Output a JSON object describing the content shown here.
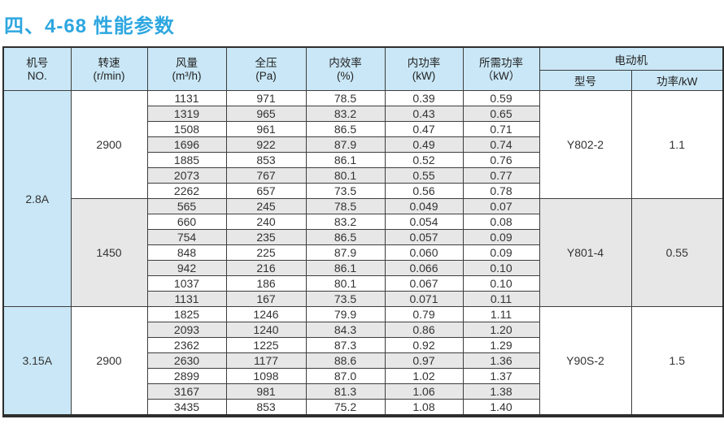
{
  "page_title": "四、4-68 性能参数",
  "colors": {
    "title_blue": "#2ea7e0",
    "header_bg": "#c9e7f6",
    "alt_row_bg": "#e7e7e7",
    "border": "#3d3d3d"
  },
  "table": {
    "headers": {
      "no": {
        "line1": "机号",
        "line2": "NO."
      },
      "speed": {
        "line1": "转速",
        "line2": "(r/min)"
      },
      "flow": {
        "line1": "风量",
        "line2": "(m³/h)"
      },
      "pressure": {
        "line1": "全压",
        "line2": "(Pa)"
      },
      "efficiency": {
        "line1": "内效率",
        "line2": "(%)"
      },
      "internal_power": {
        "line1": "内功率",
        "line2": "(kW)"
      },
      "required_power": {
        "line1": "所需功率",
        "line2": "（kW）"
      },
      "motor_group": "电动机",
      "motor_model": "型号",
      "motor_power": "功率/kW"
    },
    "groups": [
      {
        "no": "2.8A",
        "no_rowspan": 14,
        "speed": "2900",
        "motor_model": "Y802-2",
        "motor_power": "1.1",
        "merged_shade": "white",
        "rows": [
          [
            "1131",
            "971",
            "78.5",
            "0.39",
            "0.59"
          ],
          [
            "1319",
            "965",
            "83.2",
            "0.43",
            "0.65"
          ],
          [
            "1508",
            "961",
            "86.5",
            "0.47",
            "0.71"
          ],
          [
            "1696",
            "922",
            "87.9",
            "0.49",
            "0.74"
          ],
          [
            "1885",
            "853",
            "86.1",
            "0.52",
            "0.76"
          ],
          [
            "2073",
            "767",
            "80.1",
            "0.55",
            "0.77"
          ],
          [
            "2262",
            "657",
            "73.5",
            "0.56",
            "0.78"
          ]
        ]
      },
      {
        "no": null,
        "speed": "1450",
        "motor_model": "Y801-4",
        "motor_power": "0.55",
        "merged_shade": "gray",
        "rows": [
          [
            "565",
            "245",
            "78.5",
            "0.049",
            "0.07"
          ],
          [
            "660",
            "240",
            "83.2",
            "0.054",
            "0.08"
          ],
          [
            "754",
            "235",
            "86.5",
            "0.057",
            "0.09"
          ],
          [
            "848",
            "225",
            "87.9",
            "0.060",
            "0.09"
          ],
          [
            "942",
            "216",
            "86.1",
            "0.066",
            "0.10"
          ],
          [
            "1037",
            "186",
            "80.1",
            "0.067",
            "0.10"
          ],
          [
            "1131",
            "167",
            "73.5",
            "0.071",
            "0.11"
          ]
        ]
      },
      {
        "no": "3.15A",
        "no_rowspan": 7,
        "speed": "2900",
        "motor_model": "Y90S-2",
        "motor_power": "1.5",
        "merged_shade": "white",
        "rows": [
          [
            "1825",
            "1246",
            "79.9",
            "0.79",
            "1.11"
          ],
          [
            "2093",
            "1240",
            "84.3",
            "0.86",
            "1.20"
          ],
          [
            "2362",
            "1225",
            "87.3",
            "0.92",
            "1.29"
          ],
          [
            "2630",
            "1177",
            "88.6",
            "0.97",
            "1.36"
          ],
          [
            "2899",
            "1098",
            "87.0",
            "1.02",
            "1.37"
          ],
          [
            "3167",
            "981",
            "81.3",
            "1.06",
            "1.38"
          ],
          [
            "3435",
            "853",
            "75.2",
            "1.08",
            "1.40"
          ]
        ]
      }
    ]
  }
}
